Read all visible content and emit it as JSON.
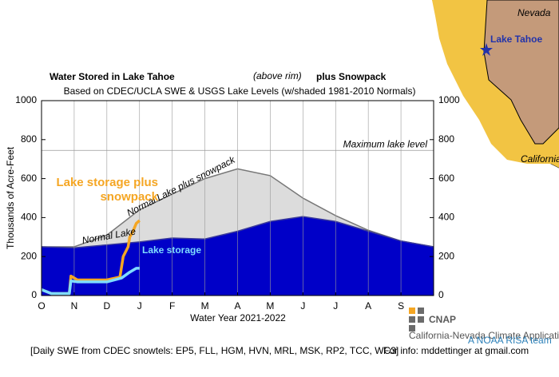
{
  "chart_data": {
    "type": "area",
    "title": "Water Stored in Lake Tahoe",
    "title_note": "(above rim)",
    "title_end": "plus Snowpack",
    "subtitle": "Based on CDEC/UCLA SWE & USGS Lake Levels (w/shaded 1981-2010 Normals)",
    "y_label": "Thousands of Acre-Feet",
    "x_label": "Water Year 2021-2022",
    "xlim": [
      0,
      12
    ],
    "xticks": [
      {
        "value": 0,
        "label": "O"
      },
      {
        "value": 1,
        "label": "N"
      },
      {
        "value": 2,
        "label": "D"
      },
      {
        "value": 3,
        "label": "J"
      },
      {
        "value": 4,
        "label": "F"
      },
      {
        "value": 5,
        "label": "M"
      },
      {
        "value": 6,
        "label": "A"
      },
      {
        "value": 7,
        "label": "M"
      },
      {
        "value": 8,
        "label": "J"
      },
      {
        "value": 9,
        "label": "J"
      },
      {
        "value": 10,
        "label": "A"
      },
      {
        "value": 11,
        "label": "S"
      }
    ],
    "ylim": [
      0,
      1000
    ],
    "yticks": [
      0,
      200,
      400,
      600,
      800,
      1000
    ],
    "y2lim": [
      0,
      1000
    ],
    "y2ticks": [
      0,
      200,
      400,
      600,
      800,
      1000
    ],
    "max_lake_level": 745,
    "max_lake_label": "Maximum lake level",
    "series": [
      {
        "name": "Normal Lake plus snowpack",
        "color": "#dcdcdc",
        "x": [
          0,
          1,
          2,
          3,
          4,
          5,
          6,
          7,
          8,
          9,
          10,
          11,
          12
        ],
        "values": [
          250,
          250,
          310,
          440,
          520,
          600,
          650,
          615,
          500,
          410,
          335,
          280,
          250
        ]
      },
      {
        "name": "Normal Lake",
        "color": "#0000c8",
        "x": [
          0,
          1,
          2,
          3,
          4,
          5,
          6,
          7,
          8,
          9,
          10,
          11,
          12
        ],
        "values": [
          250,
          245,
          260,
          275,
          295,
          290,
          330,
          380,
          405,
          380,
          330,
          280,
          250
        ]
      },
      {
        "name": "Lake storage plus snowpack",
        "color": "#f5a623",
        "x": [
          0,
          0.3,
          0.85,
          0.9,
          1.1,
          1.5,
          2.0,
          2.4,
          2.5,
          2.65,
          2.7,
          2.8,
          2.9,
          3.0
        ],
        "values": [
          30,
          10,
          10,
          100,
          80,
          80,
          80,
          95,
          200,
          250,
          300,
          330,
          370,
          385
        ]
      },
      {
        "name": "Lake storage",
        "color": "#7fdcff",
        "x": [
          0,
          0.3,
          0.85,
          0.9,
          1.1,
          1.5,
          2.0,
          2.45,
          2.7,
          2.9,
          3.0
        ],
        "values": [
          30,
          10,
          10,
          75,
          70,
          70,
          70,
          90,
          120,
          140,
          140
        ]
      }
    ],
    "footnote": "[Daily SWE from CDEC snowtels: EP5, FLL, HGM, HVN, MRL, MSK, RP2, TCC, WC3]",
    "contact": "For info: mddettinger at gmail.com",
    "logo": {
      "name": "CNAP",
      "line1": "California-Nevada Climate Applications Program",
      "line2": "A NOAA RISA team"
    },
    "map": {
      "nevada": "Nevada",
      "lake": "Lake Tahoe",
      "california": "California"
    }
  }
}
